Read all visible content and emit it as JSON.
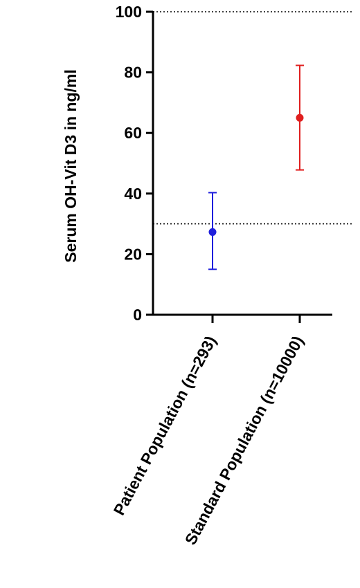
{
  "chart_data": {
    "type": "scatter",
    "title": "",
    "xlabel": "",
    "ylabel": "Serum OH-Vit D3 in ng/ml",
    "ylim": [
      0,
      100
    ],
    "yticks": [
      0,
      20,
      40,
      60,
      80,
      100
    ],
    "ytick_labels": [
      "0",
      "20",
      "40",
      "60",
      "80",
      "100"
    ],
    "categories": [
      "Patient Population (n=293)",
      "Standard Population (n=10000)"
    ],
    "series": [
      {
        "points": [
          {
            "category": "Patient Population (n=293)",
            "value": 27.3,
            "error_low": 15.0,
            "error_high": 40.3,
            "color": "#1f1fdc"
          },
          {
            "category": "Standard Population (n=10000)",
            "value": 65.0,
            "error_low": 47.8,
            "error_high": 82.3,
            "color": "#e01f1f"
          }
        ]
      }
    ],
    "reference_lines": [
      30,
      100
    ],
    "grid": false,
    "legend": "none"
  }
}
